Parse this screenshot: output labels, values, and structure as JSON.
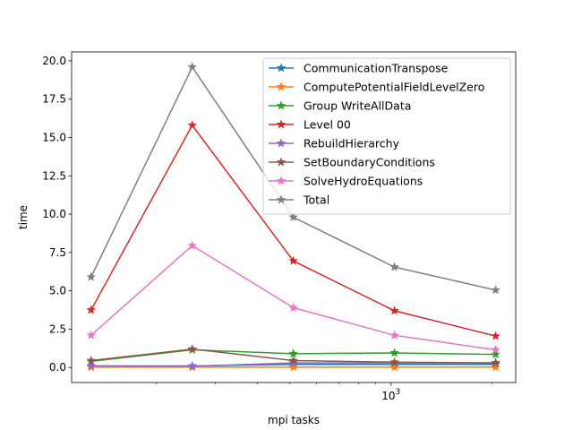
{
  "chart_data": {
    "type": "line",
    "title": "",
    "xlabel": "mpi tasks",
    "ylabel": "time",
    "xscale": "log",
    "x": [
      128,
      256,
      512,
      1024,
      2048
    ],
    "xlim": [
      112,
      2350
    ],
    "ylim": [
      -0.98,
      20.58
    ],
    "yticks": [
      0.0,
      2.5,
      5.0,
      7.5,
      10.0,
      12.5,
      15.0,
      17.5,
      20.0
    ],
    "ytick_labels": [
      "0.0",
      "2.5",
      "5.0",
      "7.5",
      "10.0",
      "12.5",
      "15.0",
      "17.5",
      "20.0"
    ],
    "xtick_major": [
      {
        "value": 1000,
        "base": "10",
        "exp": "3"
      }
    ],
    "xtick_minor": [
      200,
      300,
      400,
      500,
      600,
      700,
      800,
      900,
      2000
    ],
    "legend_position": "top-right",
    "marker": "star",
    "grid": false,
    "series": [
      {
        "name": "CommunicationTranspose",
        "color": "#1f77b4",
        "values": [
          0.1,
          0.1,
          0.2,
          0.2,
          0.2
        ]
      },
      {
        "name": "ComputePotentialFieldLevelZero",
        "color": "#ff7f0e",
        "values": [
          0.02,
          0.02,
          0.02,
          0.02,
          0.02
        ]
      },
      {
        "name": "Group WriteAllData",
        "color": "#2ca02c",
        "values": [
          0.4,
          1.15,
          0.9,
          0.95,
          0.85
        ]
      },
      {
        "name": "Level 00",
        "color": "#d62728",
        "values": [
          3.75,
          15.8,
          6.95,
          3.7,
          2.05
        ]
      },
      {
        "name": "RebuildHierarchy",
        "color": "#9467bd",
        "values": [
          0.1,
          0.08,
          0.3,
          0.3,
          0.3
        ]
      },
      {
        "name": "SetBoundaryConditions",
        "color": "#8c564b",
        "values": [
          0.45,
          1.2,
          0.45,
          0.35,
          0.3
        ]
      },
      {
        "name": "SolveHydroEquations",
        "color": "#e377c2",
        "values": [
          2.1,
          7.95,
          3.9,
          2.1,
          1.15
        ]
      },
      {
        "name": "Total",
        "color": "#7f7f7f",
        "values": [
          5.9,
          19.6,
          9.8,
          6.55,
          5.05
        ]
      }
    ]
  }
}
